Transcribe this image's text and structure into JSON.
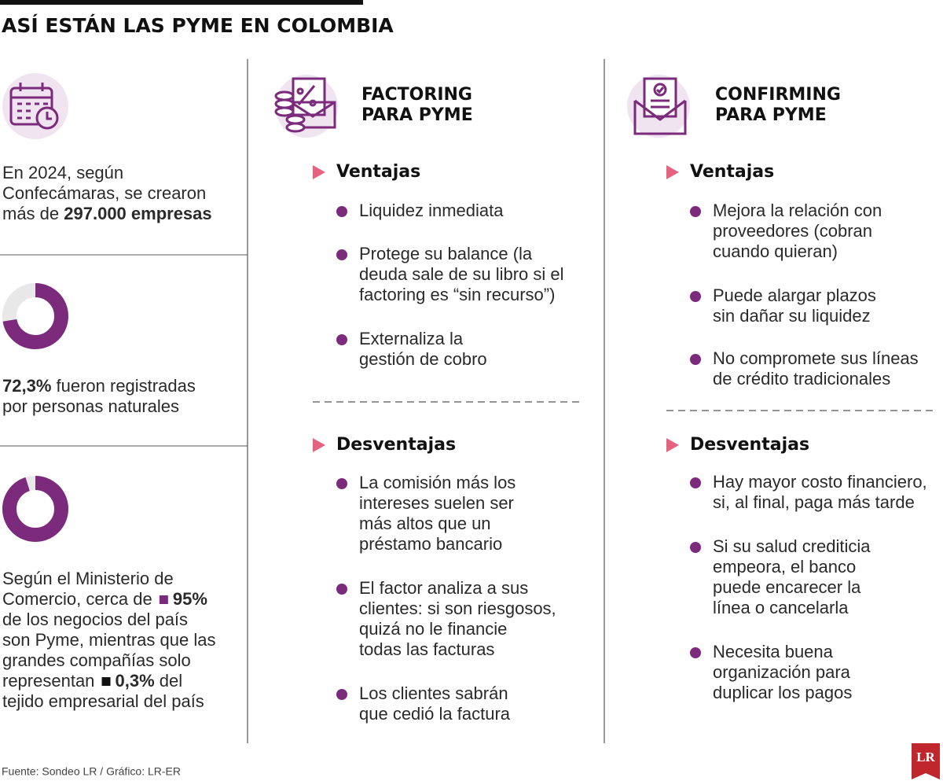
{
  "header": {
    "title": "ASÍ ESTÁN LAS PYME EN COLOMBIA"
  },
  "left": {
    "blocks": [
      {
        "lines": [
          [
            {
              "text": "En 2024, según"
            }
          ],
          [
            {
              "text": "Confecámaras, se crearon"
            }
          ],
          [
            {
              "text": "más de "
            },
            {
              "text": "297.000 empresas",
              "bold": true
            }
          ]
        ]
      },
      {
        "donut": {
          "value": 72.3,
          "color": "#7b2a7c"
        },
        "lines": [
          [
            {
              "text": "72,3%",
              "bold": true
            },
            {
              "text": " fueron registradas"
            }
          ],
          [
            {
              "text": "por personas naturales"
            }
          ]
        ]
      },
      {
        "donut": {
          "value": 95,
          "color": "#7b2a7c"
        },
        "lines": [
          [
            {
              "text": "Según el Ministerio de"
            }
          ],
          [
            {
              "text": "Comercio, cerca de "
            },
            {
              "text": "95%",
              "bold": true,
              "color": "#7b2a7c"
            }
          ],
          [
            {
              "text": "de los negocios del país"
            }
          ],
          [
            {
              "text": "son Pyme, mientras que las"
            }
          ],
          [
            {
              "text": "grandes compañías solo"
            }
          ],
          [
            {
              "text": "representan "
            },
            {
              "text": "0,3%",
              "bold": true,
              "color": "#111111"
            },
            {
              "text": " del"
            }
          ],
          [
            {
              "text": "tejido empresarial del país"
            }
          ]
        ]
      }
    ]
  },
  "columns": [
    {
      "title": [
        "FACTORING",
        "PARA PYME"
      ],
      "sections": [
        {
          "heading": "Ventajas",
          "items": [
            {
              "lines": [
                "Liquidez inmediata"
              ]
            },
            {
              "lines": [
                "Protege su balance (la",
                "deuda sale de su libro si el",
                "factoring es “sin recurso”)"
              ]
            },
            {
              "lines": [
                "Externaliza la",
                "gestión de cobro"
              ]
            }
          ]
        },
        {
          "heading": "Desventajas",
          "items": [
            {
              "lines": [
                "La comisión más los",
                "intereses suelen ser",
                "más altos que un",
                "préstamo bancario"
              ]
            },
            {
              "lines": [
                "El factor analiza a sus",
                "clientes: si son riesgosos,",
                "quizá no le financie",
                "todas las facturas"
              ]
            },
            {
              "lines": [
                "Los clientes sabrán",
                "que cedió la factura"
              ]
            }
          ]
        }
      ]
    },
    {
      "title": [
        "CONFIRMING",
        "PARA PYME"
      ],
      "sections": [
        {
          "heading": "Ventajas",
          "items": [
            {
              "lines": [
                "Mejora la relación con",
                "proveedores (cobran",
                "cuando quieran)"
              ]
            },
            {
              "lines": [
                "Puede alargar plazos",
                "sin dañar su liquidez"
              ]
            },
            {
              "lines": [
                "No compromete sus líneas",
                "de crédito tradicionales"
              ]
            }
          ]
        },
        {
          "heading": "Desventajas",
          "items": [
            {
              "lines": [
                "Hay mayor costo financiero,",
                "si, al final, paga más tarde"
              ]
            },
            {
              "lines": [
                "Si su salud crediticia",
                "empeora, el banco",
                "puede encarecer la",
                "línea o cancelarla"
              ]
            },
            {
              "lines": [
                "Necesita buena",
                "organización para",
                "duplicar los pagos"
              ]
            }
          ]
        }
      ]
    }
  ],
  "footer": {
    "source": "Fuente: Sondeo LR / Gráfico: LR-ER",
    "logo": "LR"
  }
}
